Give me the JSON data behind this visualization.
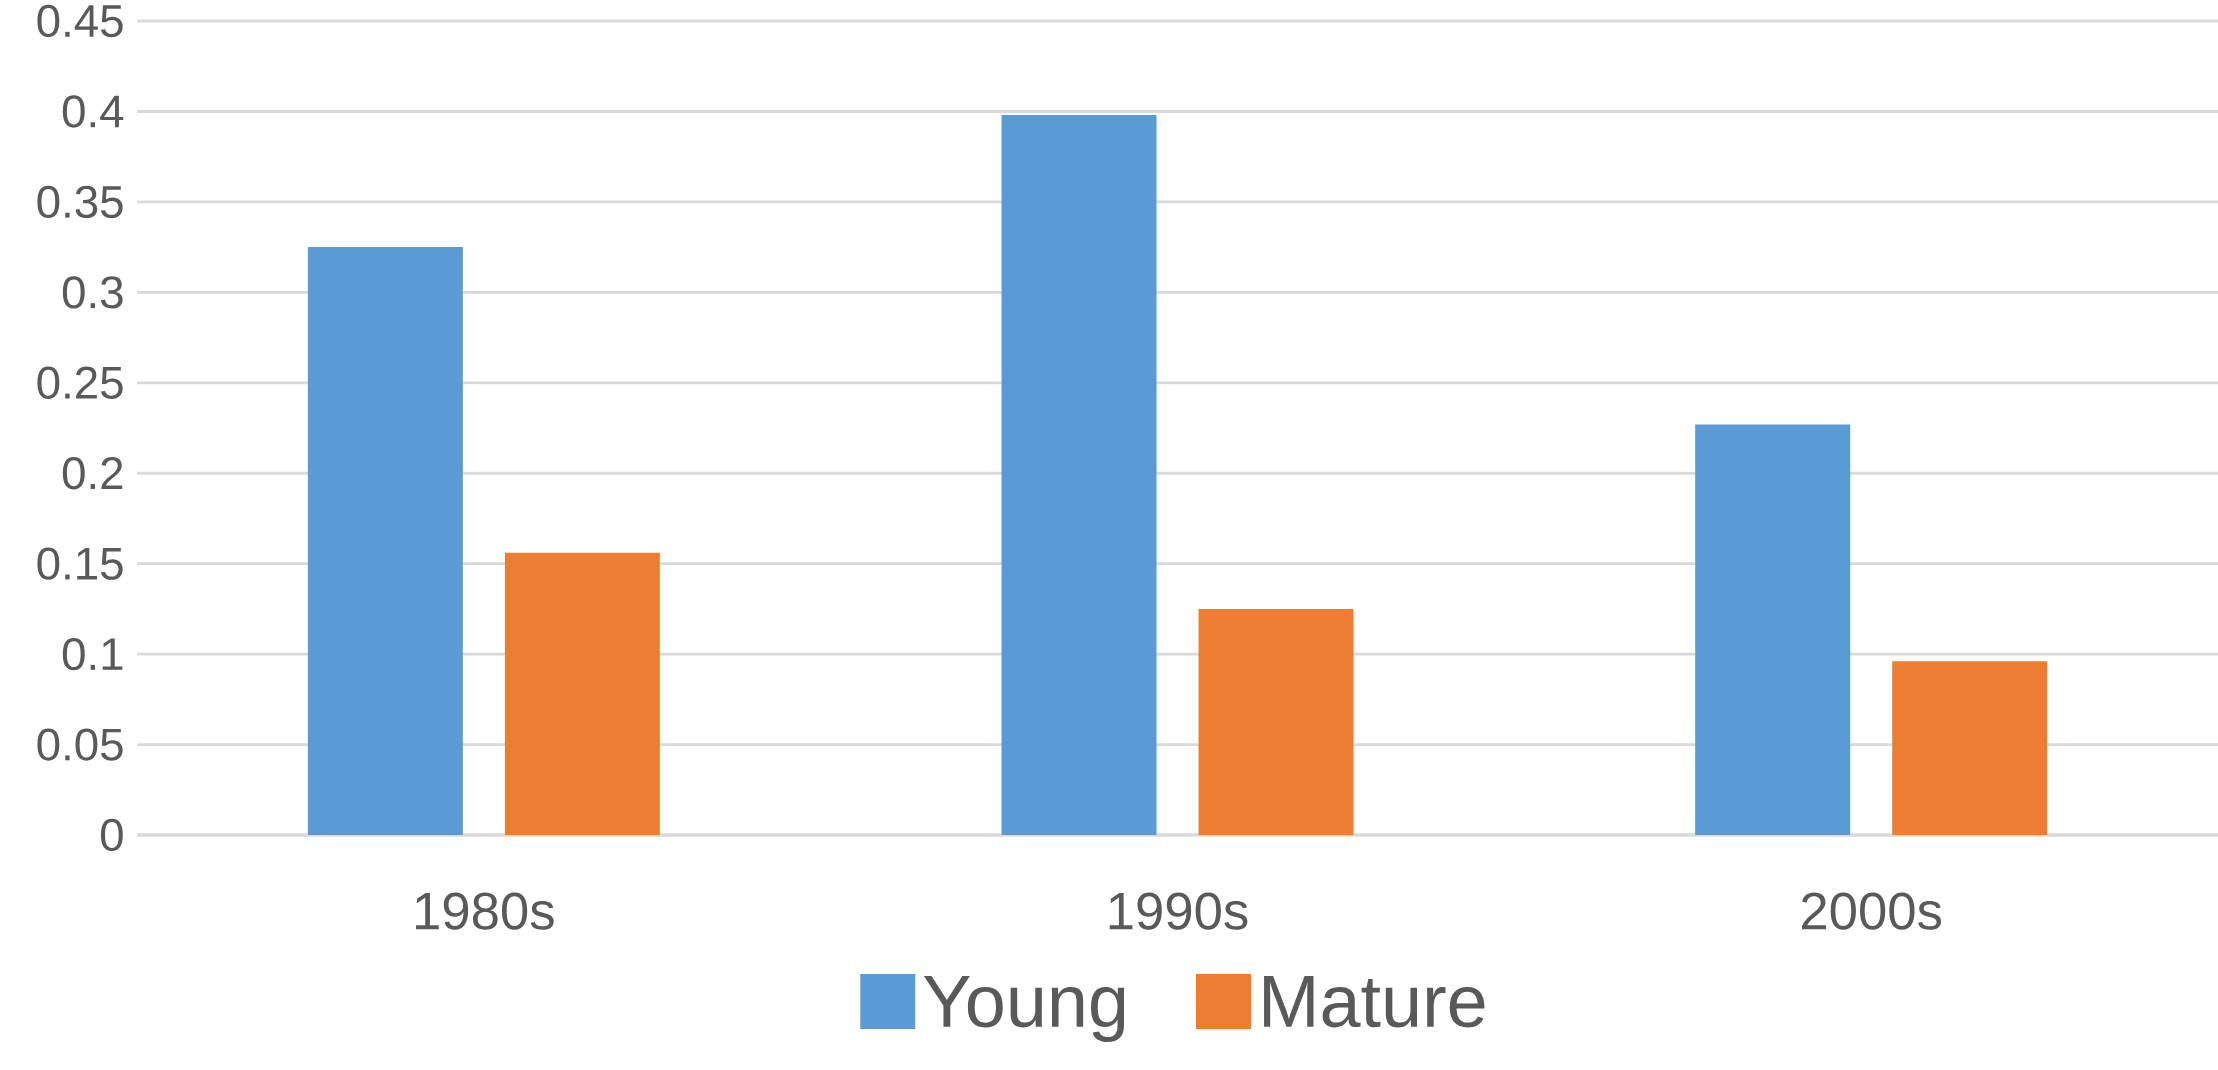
{
  "chart_data": {
    "type": "bar",
    "categories": [
      "1980s",
      "1990s",
      "2000s"
    ],
    "series": [
      {
        "name": "Young",
        "color": "#5b9bd5",
        "values": [
          0.325,
          0.398,
          0.227
        ]
      },
      {
        "name": "Mature",
        "color": "#ed7d31",
        "values": [
          0.156,
          0.125,
          0.096
        ]
      }
    ],
    "ylim": [
      0,
      0.45
    ],
    "yticks": [
      0,
      0.05,
      0.1,
      0.15,
      0.2,
      0.25,
      0.3,
      0.35,
      0.4,
      0.45
    ],
    "grid": "y",
    "legend": "bottom"
  }
}
